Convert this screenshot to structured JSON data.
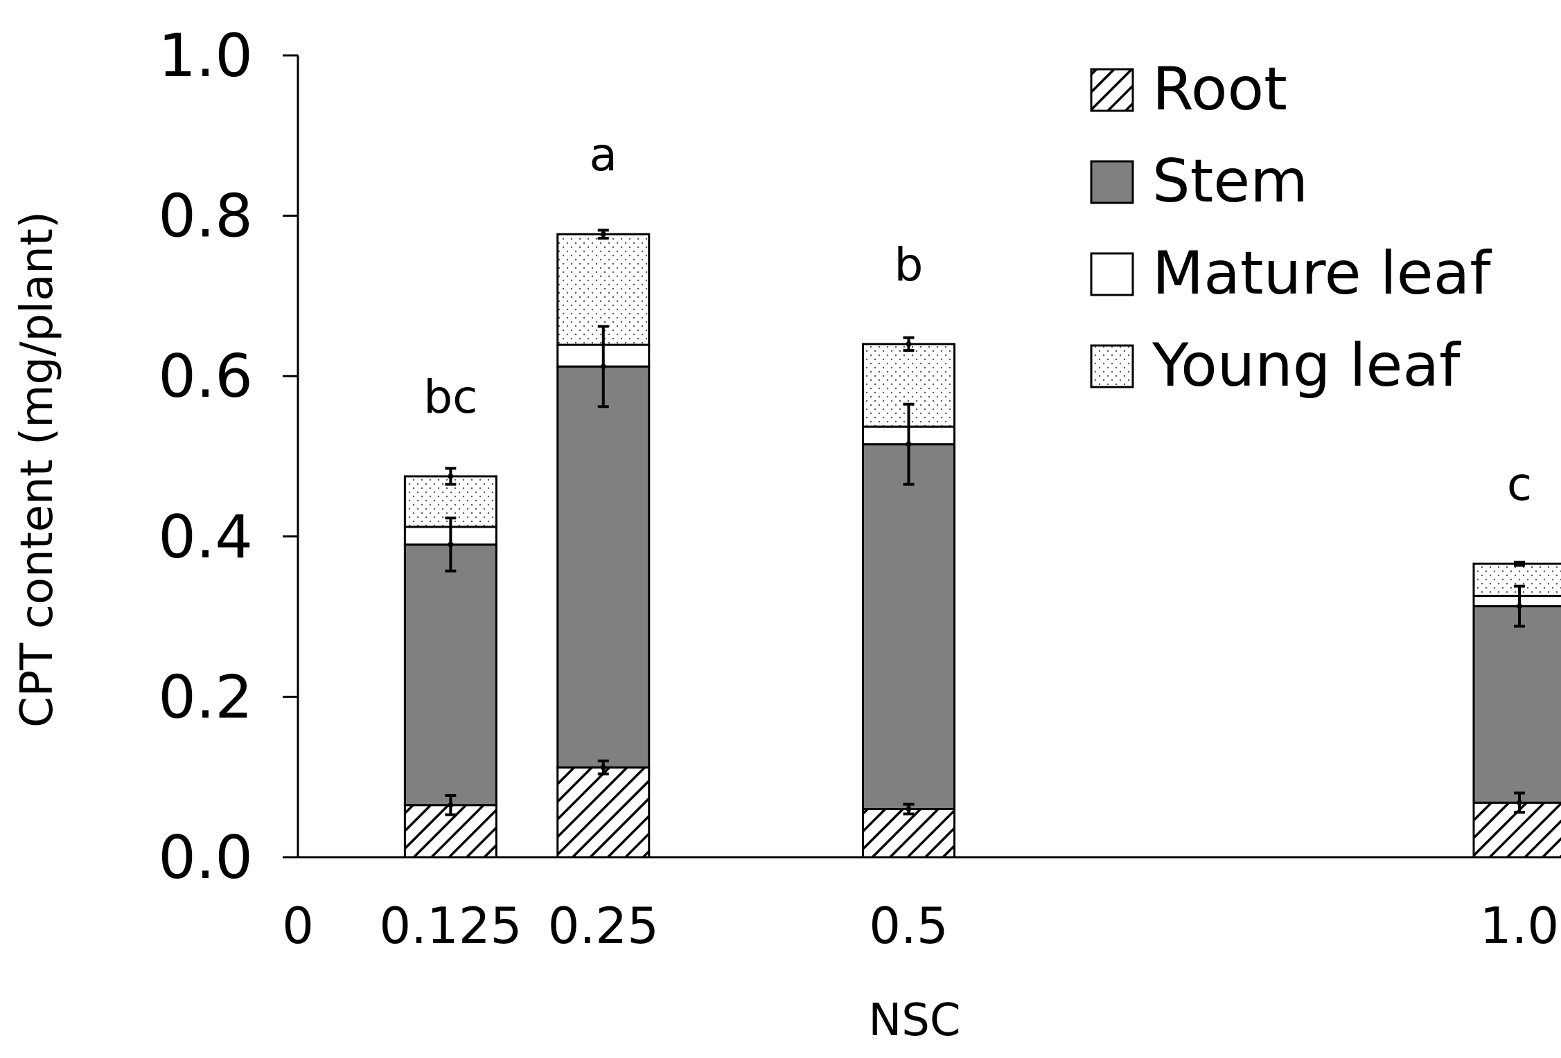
{
  "chart_data": {
    "type": "bar",
    "stacked": true,
    "title": "",
    "xlabel": "NSC",
    "ylabel": "CPT content (mg/plant)",
    "ylim": [
      0,
      1.0
    ],
    "y_ticks": [
      "0.0",
      "0.2",
      "0.4",
      "0.6",
      "0.8",
      "1.0"
    ],
    "x_ticks": [
      "0",
      "0.125",
      "0.25",
      "0.5",
      "1.0"
    ],
    "x_scale_max": 1.0,
    "categories": [
      "0.125",
      "0.25",
      "0.5",
      "1.0"
    ],
    "x_positions": [
      0.125,
      0.25,
      0.5,
      1.0
    ],
    "significance_letters": [
      "bc",
      "a",
      "b",
      "c"
    ],
    "series": [
      {
        "name": "Root",
        "pattern": "hatch",
        "values": [
          0.065,
          0.112,
          0.06,
          0.068
        ],
        "errors": [
          0.012,
          0.008,
          0.006,
          0.012
        ]
      },
      {
        "name": "Stem",
        "pattern": "solid",
        "values": [
          0.325,
          0.5,
          0.455,
          0.245
        ],
        "errors": [
          0.033,
          0.05,
          0.05,
          0.025
        ]
      },
      {
        "name": "Mature leaf",
        "pattern": "white",
        "values": [
          0.022,
          0.027,
          0.022,
          0.013
        ],
        "errors": [
          0,
          0,
          0,
          0
        ]
      },
      {
        "name": "Young leaf",
        "pattern": "dots",
        "values": [
          0.063,
          0.138,
          0.103,
          0.04
        ],
        "errors": [
          0.01,
          0.005,
          0.008,
          0.002
        ]
      }
    ],
    "legend": {
      "position": "top-right"
    },
    "colors": {
      "stem": "#808080",
      "outline": "#000000",
      "background": "#ffffff"
    }
  }
}
